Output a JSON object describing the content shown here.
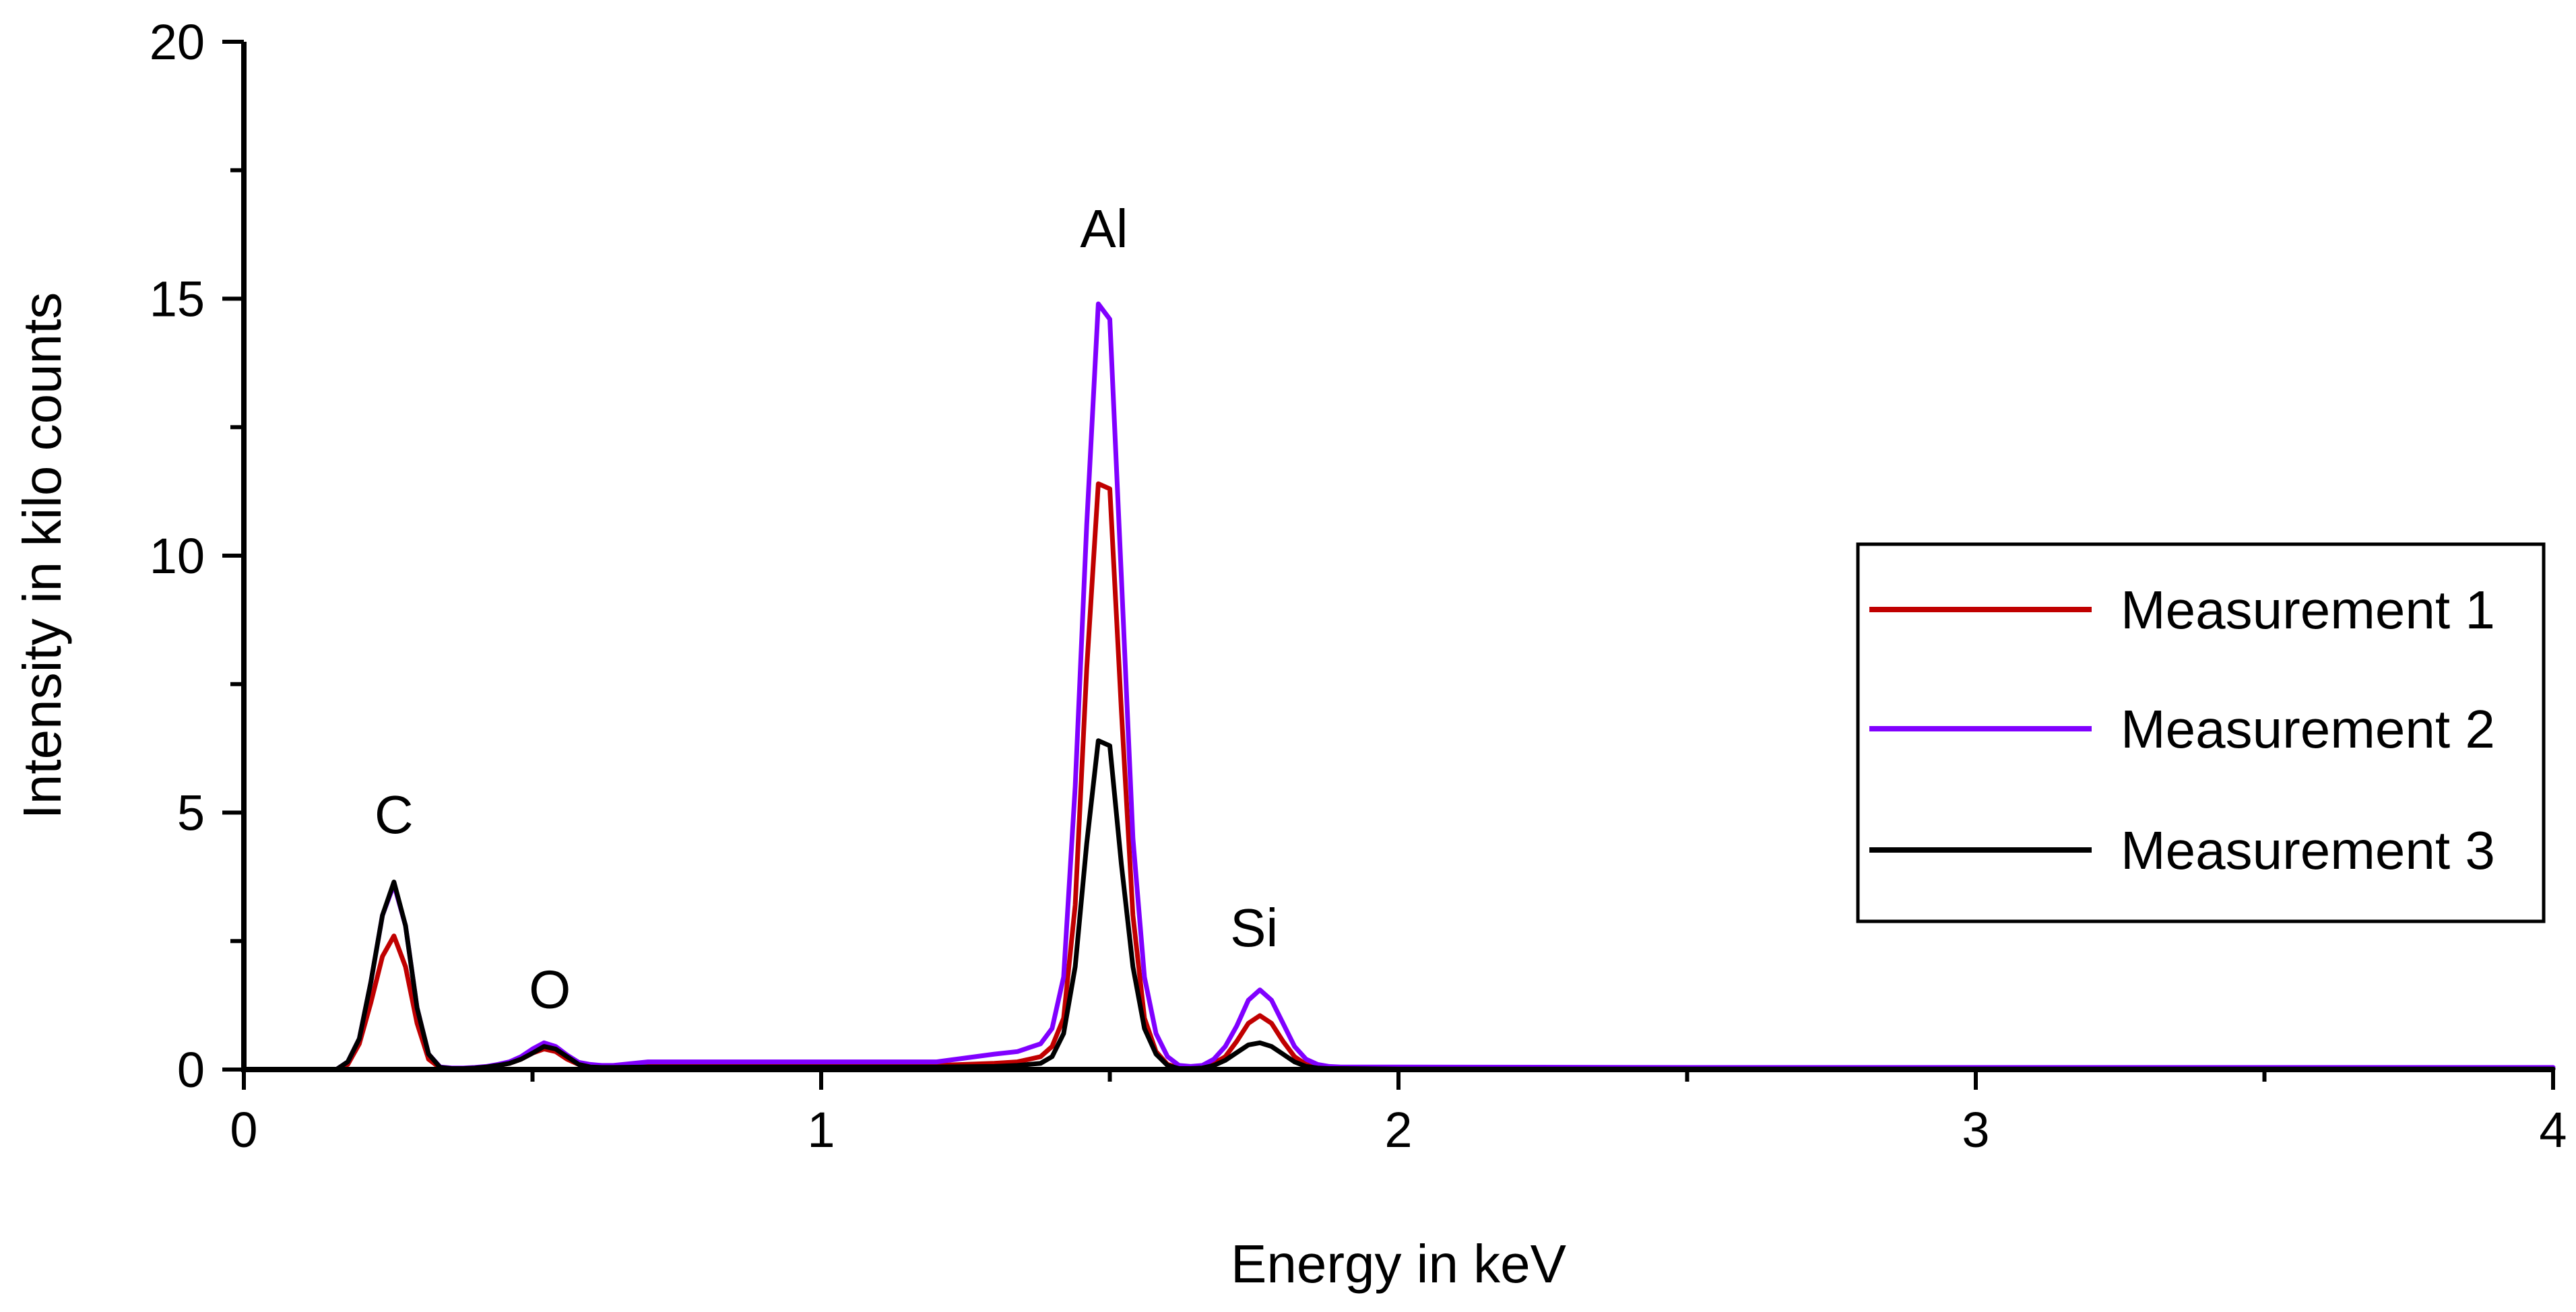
{
  "chart_data": {
    "type": "line",
    "title": "",
    "xlabel": "Energy in keV",
    "ylabel": "Intensity in kilo counts",
    "xlim": [
      0,
      4
    ],
    "ylim": [
      0,
      20
    ],
    "x_ticks": [
      "0",
      "1",
      "2",
      "3",
      "4"
    ],
    "y_ticks": [
      "0",
      "5",
      "10",
      "15",
      "20"
    ],
    "grid": false,
    "legend_position": "right",
    "x": [
      0.16,
      0.18,
      0.2,
      0.22,
      0.24,
      0.26,
      0.28,
      0.3,
      0.32,
      0.34,
      0.36,
      0.38,
      0.4,
      0.42,
      0.44,
      0.46,
      0.48,
      0.5,
      0.52,
      0.54,
      0.56,
      0.58,
      0.6,
      0.62,
      0.64,
      0.7,
      0.8,
      0.9,
      1.0,
      1.1,
      1.2,
      1.3,
      1.34,
      1.38,
      1.4,
      1.42,
      1.44,
      1.46,
      1.48,
      1.5,
      1.52,
      1.54,
      1.56,
      1.58,
      1.6,
      1.62,
      1.64,
      1.66,
      1.68,
      1.7,
      1.72,
      1.74,
      1.76,
      1.78,
      1.8,
      1.82,
      1.84,
      1.86,
      1.88,
      1.9,
      2.0,
      2.5,
      3.0,
      3.5,
      4.0
    ],
    "series": [
      {
        "name": "Measurement 1",
        "color": "#c00000",
        "values": [
          0.0,
          0.1,
          0.5,
          1.3,
          2.2,
          2.6,
          2.0,
          0.9,
          0.2,
          0.03,
          0.02,
          0.02,
          0.03,
          0.05,
          0.08,
          0.12,
          0.2,
          0.32,
          0.4,
          0.35,
          0.2,
          0.1,
          0.06,
          0.05,
          0.05,
          0.08,
          0.08,
          0.08,
          0.08,
          0.08,
          0.08,
          0.12,
          0.15,
          0.25,
          0.45,
          1.0,
          3.2,
          7.8,
          11.4,
          11.3,
          7.0,
          3.0,
          1.0,
          0.35,
          0.1,
          0.03,
          0.03,
          0.05,
          0.12,
          0.25,
          0.55,
          0.9,
          1.05,
          0.9,
          0.55,
          0.25,
          0.1,
          0.05,
          0.03,
          0.03,
          0.02,
          0.02,
          0.02,
          0.02,
          0.02
        ]
      },
      {
        "name": "Measurement 2",
        "color": "#8000ff",
        "values": [
          0.0,
          0.15,
          0.6,
          1.7,
          3.0,
          3.6,
          2.8,
          1.2,
          0.3,
          0.05,
          0.03,
          0.03,
          0.04,
          0.06,
          0.1,
          0.15,
          0.25,
          0.4,
          0.52,
          0.45,
          0.28,
          0.14,
          0.1,
          0.08,
          0.08,
          0.15,
          0.15,
          0.15,
          0.15,
          0.15,
          0.15,
          0.3,
          0.35,
          0.5,
          0.8,
          1.8,
          5.5,
          10.6,
          14.9,
          14.6,
          9.6,
          4.5,
          1.8,
          0.7,
          0.25,
          0.08,
          0.06,
          0.08,
          0.2,
          0.45,
          0.85,
          1.35,
          1.55,
          1.35,
          0.9,
          0.45,
          0.2,
          0.1,
          0.06,
          0.05,
          0.05,
          0.04,
          0.04,
          0.04,
          0.04
        ]
      },
      {
        "name": "Measurement 3",
        "color": "#000000",
        "values": [
          0.0,
          0.15,
          0.6,
          1.7,
          3.0,
          3.65,
          2.8,
          1.2,
          0.3,
          0.04,
          0.02,
          0.02,
          0.03,
          0.05,
          0.08,
          0.12,
          0.2,
          0.32,
          0.45,
          0.4,
          0.25,
          0.1,
          0.05,
          0.04,
          0.04,
          0.05,
          0.05,
          0.05,
          0.05,
          0.05,
          0.05,
          0.06,
          0.08,
          0.12,
          0.25,
          0.7,
          2.0,
          4.4,
          6.4,
          6.3,
          4.0,
          2.0,
          0.8,
          0.3,
          0.08,
          0.02,
          0.02,
          0.03,
          0.08,
          0.18,
          0.33,
          0.48,
          0.52,
          0.45,
          0.3,
          0.15,
          0.06,
          0.03,
          0.02,
          0.02,
          0.01,
          0.01,
          0.01,
          0.01,
          0.01
        ]
      }
    ],
    "annotations": [
      {
        "label": "C",
        "x": 0.26,
        "y": 4.6
      },
      {
        "label": "O",
        "x": 0.53,
        "y": 1.2
      },
      {
        "label": "Al",
        "x": 1.49,
        "y": 16.0
      },
      {
        "label": "Si",
        "x": 1.75,
        "y": 2.4
      }
    ]
  }
}
